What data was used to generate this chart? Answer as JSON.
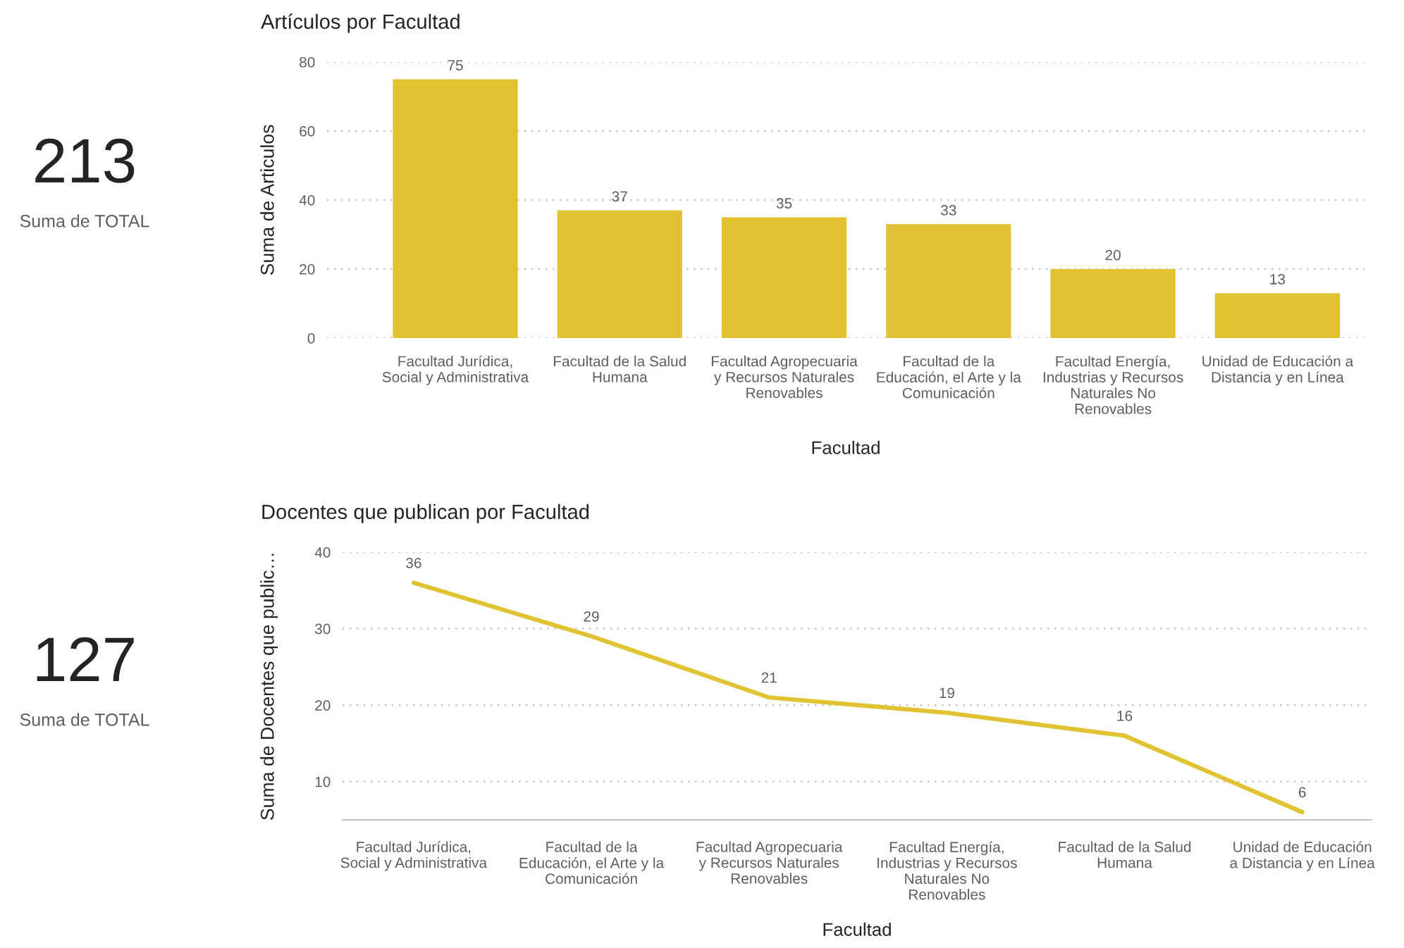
{
  "chart_data": [
    {
      "type": "other",
      "annotations": [
        "213",
        "Suma de TOTAL"
      ]
    },
    {
      "type": "bar",
      "title": "Artículos por Facultad",
      "xlabel": "Facultad",
      "ylabel": "Suma de Articulos",
      "categories": [
        "Facultad Jurídica, Social y Administrativa",
        "Facultad de la Salud Humana",
        "Facultad Agropecuaria y Recursos Naturales Renovables",
        "Facultad de la Educación, el Arte y la Comunicación",
        "Facultad Energía, Industrias y Recursos Naturales No Renovables",
        "Unidad de Educación a Distancia y en Línea"
      ],
      "values": [
        75,
        37,
        35,
        33,
        20,
        13
      ],
      "color": "#e0c232",
      "ylim": [
        0,
        80
      ],
      "yticks": [
        0,
        20,
        40,
        60,
        80
      ],
      "grid": "y",
      "data_labels": true
    },
    {
      "type": "other",
      "annotations": [
        "127",
        "Suma de TOTAL"
      ]
    },
    {
      "type": "line",
      "title": "Docentes que publican por Facultad",
      "xlabel": "Facultad",
      "ylabel": "Suma de Docentes que public…",
      "categories": [
        "Facultad Jurídica, Social y Administrativa",
        "Facultad de la Educación, el Arte y la Comunicación",
        "Facultad Agropecuaria y Recursos Naturales Renovables",
        "Facultad Energía, Industrias y Recursos Naturales No Renovables",
        "Facultad de la Salud Humana",
        "Unidad de Educación a Distancia y en Línea"
      ],
      "values": [
        36,
        29,
        21,
        19,
        16,
        6
      ],
      "color": "#e0c232",
      "ylim": [
        5,
        40
      ],
      "yticks": [
        10,
        20,
        30,
        40
      ],
      "grid": "y",
      "data_labels": true,
      "line_style": "solid"
    }
  ]
}
